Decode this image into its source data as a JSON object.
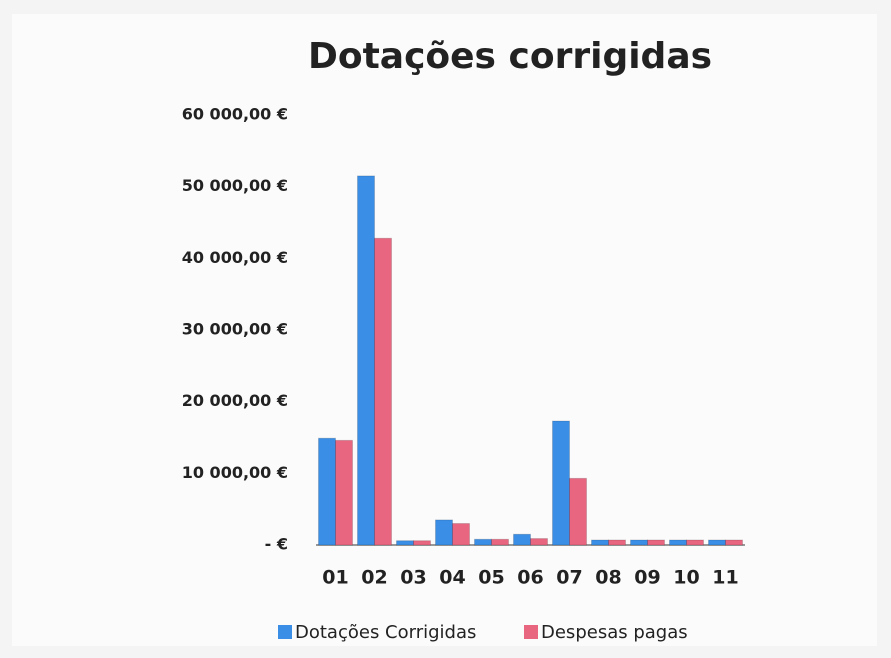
{
  "chart_data": {
    "type": "bar",
    "title": "Dotações corrigidas",
    "categories": [
      "01",
      "02",
      "03",
      "04",
      "05",
      "06",
      "07",
      "08",
      "09",
      "10",
      "11"
    ],
    "series": [
      {
        "name": "Dotações Corrigidas",
        "color": "#3a8ee6",
        "values": [
          14900,
          51500,
          600,
          3500,
          800,
          1500,
          17300,
          700,
          700,
          700,
          700
        ]
      },
      {
        "name": "Despesas pagas",
        "color": "#e8667f",
        "values": [
          14600,
          42800,
          600,
          3000,
          800,
          900,
          9300,
          700,
          700,
          700,
          700
        ]
      }
    ],
    "ylim": [
      0,
      60000
    ],
    "yticks": [
      {
        "value": 0,
        "label": "-   €"
      },
      {
        "value": 10000,
        "label": "10 000,00 €"
      },
      {
        "value": 20000,
        "label": "20 000,00 €"
      },
      {
        "value": 30000,
        "label": "30 000,00 €"
      },
      {
        "value": 40000,
        "label": "40 000,00 €"
      },
      {
        "value": 50000,
        "label": "50 000,00 €"
      },
      {
        "value": 60000,
        "label": "60 000,00 €"
      }
    ],
    "grid": false,
    "legend": "bottom"
  }
}
